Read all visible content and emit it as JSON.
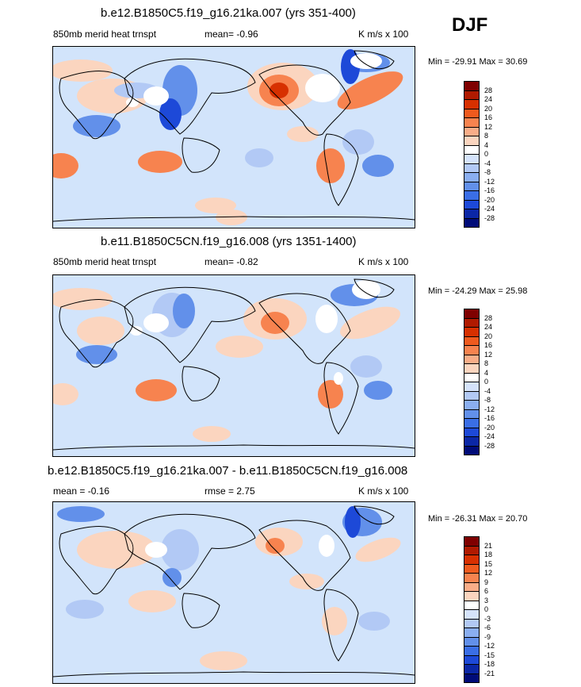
{
  "season": "DJF",
  "panels": [
    {
      "title": "b.e12.B1850C5.f19_g16.21ka.007 (yrs 351-400)",
      "left_label": "850mb merid heat trnspt",
      "mean_label": "mean=  -0.96",
      "units": "K m/s x 100",
      "min_max": "Min = -29.91 Max =  30.69",
      "colorbar_levels": [
        "28",
        "24",
        "20",
        "16",
        "12",
        "8",
        "4",
        "0",
        "-4",
        "-8",
        "-12",
        "-16",
        "-20",
        "-24",
        "-28"
      ]
    },
    {
      "title": "b.e11.B1850C5CN.f19_g16.008 (yrs 1351-1400)",
      "left_label": "850mb merid heat trnspt",
      "mean_label": "mean=  -0.82",
      "units": "K m/s x 100",
      "min_max": "Min = -24.29 Max =  25.98",
      "colorbar_levels": [
        "28",
        "24",
        "20",
        "16",
        "12",
        "8",
        "4",
        "0",
        "-4",
        "-8",
        "-12",
        "-16",
        "-20",
        "-24",
        "-28"
      ]
    },
    {
      "title": "b.e12.B1850C5.f19_g16.21ka.007 - b.e11.B1850C5CN.f19_g16.008",
      "left_label": "mean =  -0.16",
      "mean_label": "rmse =   2.75",
      "units": "K m/s x 100",
      "min_max": "Min = -26.31 Max =  20.70",
      "colorbar_levels": [
        "21",
        "18",
        "15",
        "12",
        "9",
        "6",
        "3",
        "0",
        "-3",
        "-6",
        "-9",
        "-12",
        "-15",
        "-18",
        "-21"
      ]
    }
  ],
  "colorbar_colors": [
    "#7f0000",
    "#b01a00",
    "#d73000",
    "#ef5a1e",
    "#f7834f",
    "#f9ad88",
    "#fbd5bf",
    "#ffffff",
    "#d5e3fb",
    "#b2c9f5",
    "#8aaef0",
    "#6290ea",
    "#3a6ee6",
    "#1d49d8",
    "#0b27a6",
    "#000b78"
  ],
  "map_colors": {
    "background": "#d2e4fb",
    "land_mask": "#ffffff",
    "warm_light": "#fbd5bf",
    "warm_mid": "#f7834f",
    "warm_strong": "#d73000",
    "cool_light": "#b2c9f5",
    "cool_mid": "#6290ea",
    "cool_strong": "#1d49d8",
    "coast": "#000000"
  },
  "chart_data": [
    {
      "type": "heatmap",
      "title": "b.e12.B1850C5.f19_g16.21ka.007 (yrs 351-400)",
      "variable": "850mb merid heat trnspt",
      "units": "K m/s x 100",
      "mean": -0.96,
      "min": -29.91,
      "max": 30.69,
      "contour_levels": [
        -28,
        -24,
        -20,
        -16,
        -12,
        -8,
        -4,
        0,
        4,
        8,
        12,
        16,
        20,
        24,
        28
      ]
    },
    {
      "type": "heatmap",
      "title": "b.e11.B1850C5CN.f19_g16.008 (yrs 1351-1400)",
      "variable": "850mb merid heat trnspt",
      "units": "K m/s x 100",
      "mean": -0.82,
      "min": -24.29,
      "max": 25.98,
      "contour_levels": [
        -28,
        -24,
        -20,
        -16,
        -12,
        -8,
        -4,
        0,
        4,
        8,
        12,
        16,
        20,
        24,
        28
      ]
    },
    {
      "type": "heatmap",
      "title": "b.e12.B1850C5.f19_g16.21ka.007 - b.e11.B1850C5CN.f19_g16.008",
      "units": "K m/s x 100",
      "mean": -0.16,
      "rmse": 2.75,
      "min": -26.31,
      "max": 20.7,
      "contour_levels": [
        -21,
        -18,
        -15,
        -12,
        -9,
        -6,
        -3,
        0,
        3,
        6,
        9,
        12,
        15,
        18,
        21
      ]
    }
  ]
}
